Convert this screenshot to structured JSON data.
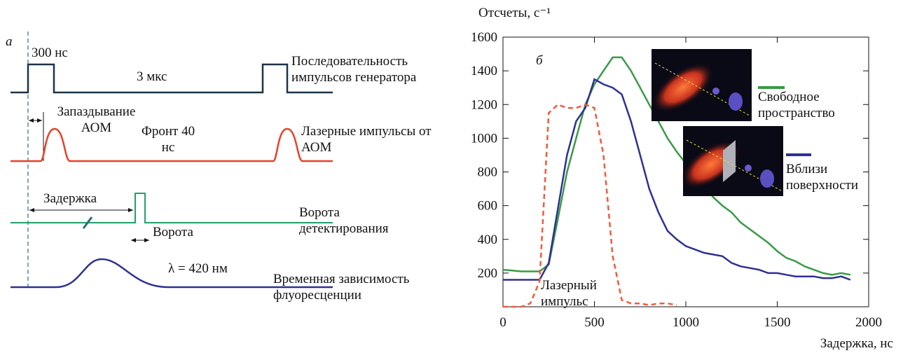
{
  "diagram": {
    "label": "а",
    "pulse_width": "300 нс",
    "period": "3 мкс",
    "generator": "Последовательность импульсов генератора",
    "aom_delay": "Запаздывание АОМ",
    "front": "Фронт 40 нс",
    "laser": "Лазерные импульсы от АОМ",
    "delay": "Задержка",
    "gate": "Ворота",
    "detection": "Ворота детектирования",
    "wavelength": "λ = 420 нм",
    "fluorescence": "Временная зависимость флуоресценции"
  },
  "chart_data": {
    "type": "line",
    "panel_label": "б",
    "ylabel": "Отсчеты, с⁻¹",
    "xlabel": "Задержка, нс",
    "annotation": "Лазерный импульс",
    "xlim": [
      0,
      2000
    ],
    "xticks": [
      0,
      500,
      1000,
      1500,
      2000
    ],
    "ylim": [
      0,
      1600
    ],
    "yticks": [
      200,
      400,
      600,
      800,
      1000,
      1200,
      1400,
      1600
    ],
    "x": [
      0,
      50,
      100,
      150,
      200,
      250,
      300,
      350,
      400,
      450,
      500,
      550,
      600,
      650,
      700,
      750,
      800,
      850,
      900,
      950,
      1000,
      1050,
      1100,
      1150,
      1200,
      1250,
      1300,
      1350,
      1400,
      1450,
      1500,
      1550,
      1600,
      1650,
      1700,
      1750,
      1800,
      1850,
      1900
    ],
    "series": [
      {
        "name": "Свободное пространство",
        "color": "#3a9a46",
        "values": [
          220,
          215,
          210,
          210,
          210,
          250,
          520,
          800,
          1000,
          1200,
          1320,
          1400,
          1480,
          1480,
          1400,
          1300,
          1200,
          1100,
          1000,
          920,
          850,
          780,
          720,
          650,
          600,
          560,
          500,
          460,
          420,
          380,
          330,
          290,
          270,
          240,
          220,
          200,
          190,
          200,
          190
        ]
      },
      {
        "name": "Вблизи поверхности",
        "color": "#2e3192",
        "values": [
          160,
          160,
          160,
          160,
          160,
          260,
          580,
          900,
          1100,
          1180,
          1350,
          1320,
          1300,
          1260,
          1100,
          900,
          700,
          560,
          450,
          400,
          360,
          340,
          320,
          310,
          300,
          260,
          240,
          230,
          220,
          200,
          200,
          190,
          180,
          180,
          180,
          170,
          170,
          180,
          160
        ]
      },
      {
        "color": "#f05a3c",
        "dashed": true,
        "values": [
          0,
          0,
          0,
          20,
          150,
          1150,
          1200,
          1180,
          1180,
          1200,
          1180,
          900,
          300,
          40,
          20,
          20,
          10,
          20,
          20,
          10,
          null,
          null,
          null,
          null,
          null,
          null,
          null,
          null,
          null,
          null,
          null,
          null,
          null,
          null,
          null,
          null,
          null,
          null,
          null
        ]
      }
    ]
  }
}
